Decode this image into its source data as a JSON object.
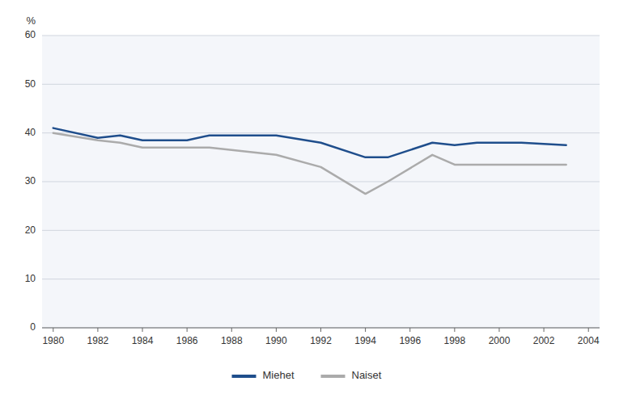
{
  "chart_data": {
    "type": "line",
    "y_label": "%",
    "x": [
      1980,
      1982,
      1983,
      1984,
      1986,
      1987,
      1988,
      1989,
      1990,
      1992,
      1994,
      1995,
      1997,
      1998,
      1999,
      2000,
      2001,
      2003
    ],
    "series": [
      {
        "name": "Miehet",
        "color": "#1F4E8C",
        "values": [
          41,
          39,
          39.5,
          38.5,
          38.5,
          39.5,
          39.5,
          39.5,
          39.5,
          38,
          35,
          35,
          38,
          37.5,
          38,
          38,
          38,
          37.5
        ]
      },
      {
        "name": "Naiset",
        "color": "#ABABAB",
        "values": [
          40,
          38.5,
          38,
          37,
          37,
          37,
          36.5,
          36,
          35.5,
          33,
          27.5,
          30,
          35.5,
          33.5,
          33.5,
          33.5,
          33.5,
          33.5
        ]
      }
    ],
    "xlim": [
      1979.5,
      2004.5
    ],
    "xticks": [
      1980,
      1982,
      1984,
      1986,
      1988,
      1990,
      1992,
      1994,
      1996,
      1998,
      2000,
      2002,
      2004
    ],
    "ylim": [
      0,
      60
    ],
    "yticks": [
      0,
      10,
      20,
      30,
      40,
      50,
      60
    ],
    "grid": true,
    "legend": "bottom"
  }
}
